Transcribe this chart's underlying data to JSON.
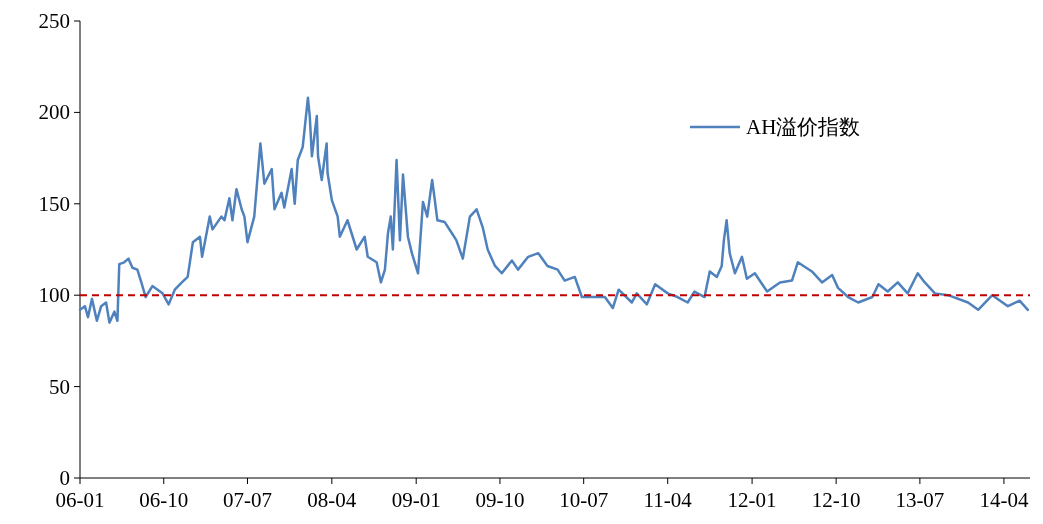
{
  "chart_data": {
    "type": "line",
    "x": [
      "2006-01-01",
      "2006-01-17",
      "2006-01-27",
      "2006-02-09",
      "2006-02-25",
      "2006-03-11",
      "2006-03-27",
      "2006-04-07",
      "2006-04-23",
      "2006-05-03",
      "2006-05-09",
      "2006-05-25",
      "2006-06-08",
      "2006-06-21",
      "2006-07-07",
      "2006-07-20",
      "2006-08-03",
      "2006-08-25",
      "2006-09-11",
      "2006-09-27",
      "2006-10-17",
      "2006-11-06",
      "2006-11-29",
      "2006-12-18",
      "2007-01-04",
      "2007-01-27",
      "2007-02-03",
      "2007-02-28",
      "2007-03-09",
      "2007-04-07",
      "2007-04-17",
      "2007-05-03",
      "2007-05-13",
      "2007-05-26",
      "2007-06-12",
      "2007-06-21",
      "2007-07-01",
      "2007-07-23",
      "2007-08-12",
      "2007-08-25",
      "2007-09-18",
      "2007-09-27",
      "2007-10-20",
      "2007-10-29",
      "2007-11-22",
      "2007-12-02",
      "2007-12-12",
      "2007-12-28",
      "2008-01-14",
      "2008-01-20",
      "2008-01-27",
      "2008-02-12",
      "2008-02-16",
      "2008-02-28",
      "2008-03-15",
      "2008-03-18",
      "2008-04-01",
      "2008-04-20",
      "2008-04-27",
      "2008-05-22",
      "2008-06-21",
      "2008-07-17",
      "2008-07-27",
      "2008-08-25",
      "2008-09-08",
      "2008-09-21",
      "2008-10-01",
      "2008-10-10",
      "2008-10-17",
      "2008-10-29",
      "2008-11-09",
      "2008-11-19",
      "2008-12-05",
      "2008-12-18",
      "2009-01-07",
      "2009-01-23",
      "2009-02-06",
      "2009-02-22",
      "2009-03-02",
      "2009-03-11",
      "2009-04-04",
      "2009-04-27",
      "2009-05-12",
      "2009-06-02",
      "2009-06-25",
      "2009-07-17",
      "2009-08-06",
      "2009-08-22",
      "2009-09-15",
      "2009-10-07",
      "2009-11-09",
      "2009-11-29",
      "2010-01-01",
      "2010-02-03",
      "2010-03-05",
      "2010-04-07",
      "2010-04-30",
      "2010-06-02",
      "2010-06-25",
      "2010-08-06",
      "2010-09-08",
      "2010-10-04",
      "2010-10-23",
      "2010-12-05",
      "2010-12-21",
      "2011-01-23",
      "2011-02-19",
      "2011-04-01",
      "2011-05-03",
      "2011-06-05",
      "2011-06-27",
      "2011-07-30",
      "2011-08-16",
      "2011-09-08",
      "2011-09-24",
      "2011-10-01",
      "2011-10-10",
      "2011-10-20",
      "2011-11-06",
      "2011-11-29",
      "2011-12-15",
      "2012-01-10",
      "2012-02-19",
      "2012-04-01",
      "2012-05-10",
      "2012-05-29",
      "2012-07-14",
      "2012-08-16",
      "2012-09-18",
      "2012-10-07",
      "2012-11-09",
      "2012-12-12",
      "2013-01-27",
      "2013-02-16",
      "2013-03-18",
      "2013-04-20",
      "2013-05-22",
      "2013-06-24",
      "2013-07-17",
      "2013-08-19",
      "2013-10-01",
      "2013-12-05",
      "2014-01-07",
      "2014-02-22",
      "2014-04-14",
      "2014-05-22",
      "2014-06-18"
    ],
    "series": [
      {
        "name": "AH溢价指数",
        "color": "#4f81bd",
        "values": [
          92,
          94,
          88,
          98,
          86,
          94,
          96,
          85,
          91,
          86,
          117,
          118,
          120,
          115,
          114,
          107,
          99,
          105,
          103,
          101,
          95,
          103,
          107,
          110,
          129,
          132,
          121,
          143,
          136,
          143,
          141,
          153,
          141,
          158,
          147,
          143,
          129,
          143,
          183,
          161,
          169,
          147,
          156,
          148,
          169,
          150,
          174,
          181,
          208,
          198,
          176,
          198,
          176,
          163,
          183,
          167,
          152,
          143,
          132,
          141,
          125,
          132,
          121,
          118,
          107,
          114,
          134,
          143,
          125,
          174,
          130,
          166,
          132,
          123,
          112,
          151,
          143,
          163,
          153,
          141,
          140,
          134,
          130,
          120,
          143,
          147,
          137,
          125,
          116,
          112,
          119,
          114,
          121,
          123,
          116,
          114,
          108,
          110,
          99,
          99,
          99,
          93,
          103,
          96,
          101,
          95,
          106,
          101,
          99,
          96,
          102,
          99,
          113,
          110,
          116,
          130,
          141,
          123,
          112,
          121,
          109,
          112,
          102,
          107,
          108,
          118,
          113,
          107,
          111,
          104,
          99,
          96,
          99,
          106,
          102,
          107,
          101,
          112,
          107,
          101,
          100,
          96,
          92,
          100,
          94,
          97,
          92
        ]
      }
    ],
    "xlim": [
      "2006-01-01",
      "2014-06-25"
    ],
    "xticks": [
      {
        "value": "2006-01",
        "label": "06-01"
      },
      {
        "value": "2006-10",
        "label": "06-10"
      },
      {
        "value": "2007-07",
        "label": "07-07"
      },
      {
        "value": "2008-04",
        "label": "08-04"
      },
      {
        "value": "2009-01",
        "label": "09-01"
      },
      {
        "value": "2009-10",
        "label": "09-10"
      },
      {
        "value": "2010-07",
        "label": "10-07"
      },
      {
        "value": "2011-04",
        "label": "11-04"
      },
      {
        "value": "2012-01",
        "label": "12-01"
      },
      {
        "value": "2012-10",
        "label": "12-10"
      },
      {
        "value": "2013-07",
        "label": "13-07"
      },
      {
        "value": "2014-04",
        "label": "14-04"
      }
    ],
    "ylim": [
      0,
      250
    ],
    "yticks": [
      0,
      50,
      100,
      150,
      200,
      250
    ],
    "ref_lines": [
      {
        "axis": "y",
        "value": 100,
        "color": "#c00000",
        "line_style": "dashed"
      }
    ],
    "legend": "top right"
  }
}
